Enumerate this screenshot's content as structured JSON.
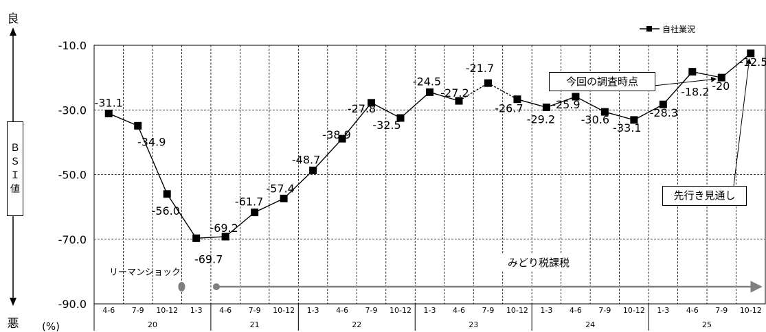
{
  "chart_data": {
    "type": "line",
    "title": "",
    "ylabel": "ＢＳＩ値",
    "ylabel_chars": [
      "Ｂ",
      "Ｓ",
      "Ｉ",
      "値"
    ],
    "y_top_label": "良",
    "y_bottom_label": "悪",
    "y_unit": "(%)",
    "ylim": [
      -90,
      -10
    ],
    "yticks": [
      -10.0,
      -30.0,
      -50.0,
      -70.0,
      -90.0
    ],
    "ytick_labels": [
      "-10.0",
      "-30.0",
      "-50.0",
      "-70.0",
      "-90.0"
    ],
    "categories": [
      "4-6",
      "7-9",
      "10-12",
      "1-3",
      "4-6",
      "7-9",
      "10-12",
      "1-3",
      "4-6",
      "7-9",
      "10-12",
      "1-3",
      "4-6",
      "7-9",
      "10-12",
      "1-3",
      "4-6",
      "7-9",
      "10-12",
      "1-3",
      "4-6",
      "7-9",
      "10-12"
    ],
    "years": [
      {
        "label": "20",
        "start": 0,
        "end": 3
      },
      {
        "label": "21",
        "start": 4,
        "end": 6
      },
      {
        "label": "22",
        "start": 7,
        "end": 10
      },
      {
        "label": "23",
        "start": 11,
        "end": 14
      },
      {
        "label": "24",
        "start": 15,
        "end": 18
      },
      {
        "label": "25",
        "start": 19,
        "end": 22
      }
    ],
    "series": [
      {
        "name": "自社業況",
        "values": [
          -31.1,
          -34.9,
          -56.0,
          -69.7,
          -69.2,
          -61.7,
          -57.4,
          -48.7,
          -38.9,
          -27.8,
          -32.5,
          -24.5,
          -27.2,
          -21.7,
          -26.7,
          -29.2,
          -25.9,
          -30.6,
          -33.1,
          -28.3,
          -18.2,
          -20.0,
          -12.5
        ],
        "value_labels": [
          "-31.1",
          "-34.9",
          "-56.0",
          "-69.7",
          "-69.2",
          "-61.7",
          "-57.4",
          "-48.7",
          "-38.9",
          "-27.8",
          "-32.5",
          "-24.5",
          "-27.2",
          "-21.7",
          "-26.7",
          "-29.2",
          "-25.9",
          "-30.6",
          "-33.1",
          "-28.3",
          "-18.2",
          "-20",
          "-12.5"
        ],
        "dashed_segments": [
          [
            12,
            13
          ],
          [
            13,
            14
          ]
        ],
        "color": "#000000"
      }
    ],
    "legend": {
      "label": "自社業況",
      "position": "top-right"
    },
    "grid": true,
    "annotations": {
      "lehman": {
        "text": "リーマンショック",
        "index": 2.5
      },
      "midori": {
        "text": "みどり税課税",
        "from_index": 4,
        "to_index": 22
      },
      "survey_point": {
        "text": "今回の調査時点",
        "index": 21
      },
      "outlook": {
        "text": "先行き見通し",
        "index": 22
      }
    },
    "colors": {
      "line": "#000000",
      "arrow": "#7f7f7f",
      "dot": "#7f7f7f",
      "grid": "#000000"
    }
  }
}
